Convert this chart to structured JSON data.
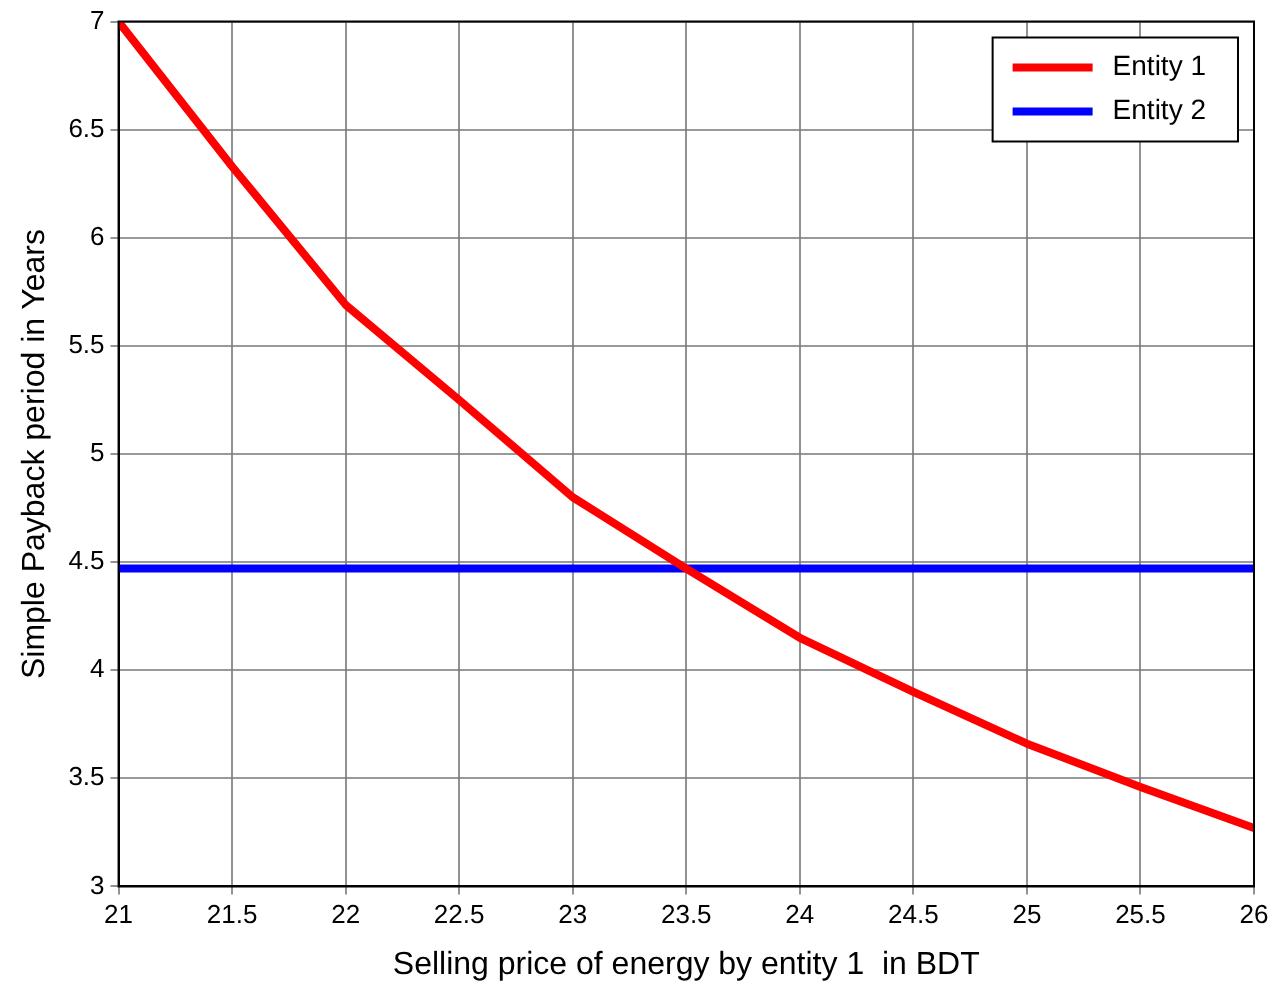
{
  "chart_data": {
    "type": "line",
    "xlabel": "Selling price of energy by entity 1  in BDT",
    "ylabel": "Simple Payback period in Years",
    "x": [
      21,
      21.5,
      22,
      22.5,
      23,
      23.5,
      24,
      24.5,
      25,
      25.5,
      26
    ],
    "series": [
      {
        "name": "Entity 1",
        "color": "#ff0000",
        "values": [
          7.0,
          6.33,
          5.69,
          5.25,
          4.8,
          4.47,
          4.15,
          3.9,
          3.66,
          3.46,
          3.27
        ]
      },
      {
        "name": "Entity 2",
        "color": "#0000ff",
        "x": [
          21,
          26
        ],
        "values": [
          4.47,
          4.47
        ]
      }
    ],
    "xlim": [
      21,
      26
    ],
    "xticks": [
      21,
      21.5,
      22,
      22.5,
      23,
      23.5,
      24,
      24.5,
      25,
      25.5,
      26
    ],
    "ylim": [
      3,
      7
    ],
    "yticks": [
      3,
      3.5,
      4,
      4.5,
      5,
      5.5,
      6,
      6.5,
      7
    ],
    "grid": true,
    "legend": "top right",
    "marker": "none",
    "line_style": "solid"
  }
}
